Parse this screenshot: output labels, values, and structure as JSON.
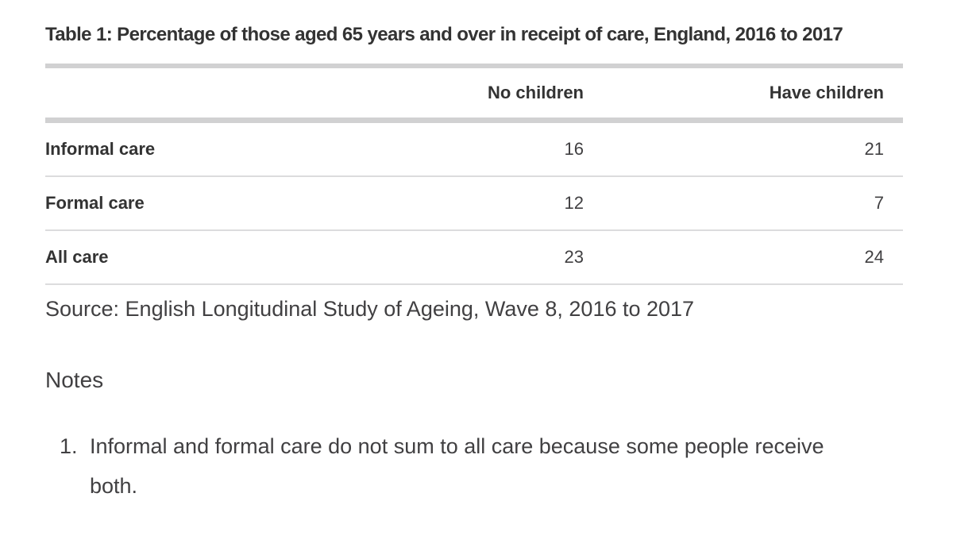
{
  "table": {
    "title": "Table 1: Percentage of those aged 65 years and over in receipt of care, England, 2016 to 2017",
    "columns": [
      "",
      "No children",
      "Have children"
    ],
    "rows": [
      {
        "label": "Informal care",
        "no_children": "16",
        "have_children": "21"
      },
      {
        "label": "Formal care",
        "no_children": "12",
        "have_children": "7"
      },
      {
        "label": "All care",
        "no_children": "23",
        "have_children": "24"
      }
    ],
    "source": "Source: English Longitudinal Study of Ageing, Wave 8, 2016 to 2017"
  },
  "notes": {
    "heading": "Notes",
    "items": [
      {
        "number": "1.",
        "text": "Informal and formal care do not sum to all care because some people receive both."
      }
    ]
  },
  "chart_data": {
    "type": "table",
    "title": "Table 1: Percentage of those aged 65 years and over in receipt of care, England, 2016 to 2017",
    "categories": [
      "Informal care",
      "Formal care",
      "All care"
    ],
    "series": [
      {
        "name": "No children",
        "values": [
          16,
          12,
          23
        ]
      },
      {
        "name": "Have children",
        "values": [
          21,
          7,
          24
        ]
      }
    ],
    "source": "English Longitudinal Study of Ageing, Wave 8, 2016 to 2017"
  },
  "colors": {
    "title_text": "#333333",
    "body_text": "#414042",
    "thick_bar": "#d1d1d2",
    "thin_line": "#dcdcdd",
    "background": "#ffffff"
  }
}
